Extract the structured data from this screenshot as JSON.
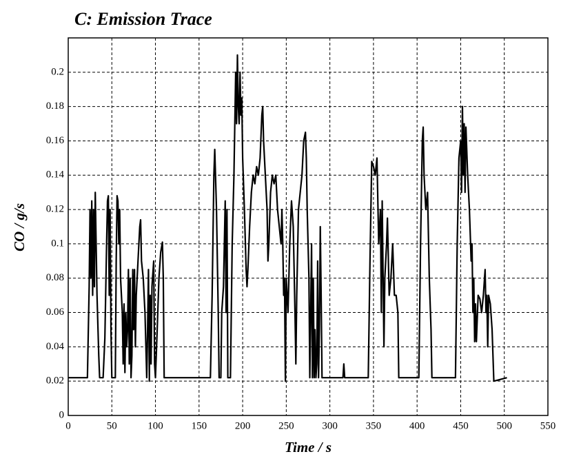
{
  "chart_data": {
    "type": "line",
    "title": "C:   Emission Trace",
    "x_label": "Time / s",
    "y_label": "CO / g/s",
    "grid": true,
    "xlim": [
      0,
      550
    ],
    "ylim": [
      0,
      0.22
    ],
    "xticks": [
      0,
      50,
      100,
      150,
      200,
      250,
      300,
      350,
      400,
      450,
      500,
      550
    ],
    "yticks": [
      0,
      0.02,
      0.04,
      0.06,
      0.08,
      0.1,
      0.12,
      0.14,
      0.16,
      0.18,
      0.2
    ],
    "series": [
      {
        "name": "CO",
        "color": "#000000",
        "x": [
          0,
          22,
          24,
          25,
          26,
          27,
          28,
          29,
          30,
          31,
          32,
          33,
          35,
          36,
          40,
          42,
          44,
          45,
          46,
          47,
          48,
          49,
          50,
          54,
          55,
          56,
          57,
          58,
          59,
          60,
          62,
          63,
          64,
          65,
          66,
          67,
          68,
          69,
          70,
          71,
          72,
          73,
          74,
          75,
          76,
          77,
          78,
          80,
          82,
          83,
          84,
          86,
          88,
          90,
          91,
          92,
          93,
          94,
          95,
          96,
          98,
          99,
          100,
          102,
          104,
          106,
          108,
          109,
          110,
          112,
          163,
          165,
          167,
          168,
          170,
          172,
          173,
          175,
          176,
          178,
          180,
          181,
          182,
          183,
          186,
          188,
          190,
          192,
          193,
          194,
          195,
          196,
          197,
          198,
          199,
          200,
          202,
          204,
          205,
          206,
          208,
          210,
          212,
          214,
          216,
          218,
          220,
          222,
          223,
          224,
          226,
          228,
          229,
          230,
          232,
          234,
          236,
          238,
          240,
          242,
          244,
          245,
          246,
          247,
          248,
          249,
          250,
          252,
          254,
          256,
          258,
          260,
          261,
          262,
          264,
          266,
          268,
          270,
          272,
          273,
          274,
          276,
          277,
          278,
          279,
          280,
          281,
          282,
          283,
          284,
          285,
          286,
          287,
          288,
          289,
          290,
          291,
          293,
          315,
          316,
          317,
          344,
          346,
          348,
          350,
          352,
          354,
          356,
          358,
          359,
          360,
          362,
          363,
          365,
          366,
          368,
          370,
          372,
          374,
          376,
          378,
          379,
          402,
          404,
          406,
          407,
          408,
          410,
          412,
          414,
          416,
          417,
          444,
          446,
          448,
          450,
          451,
          452,
          453,
          454,
          455,
          456,
          458,
          460,
          462,
          463,
          464,
          465,
          466,
          467,
          468,
          470,
          472,
          474,
          476,
          478,
          479,
          480,
          481,
          482,
          484,
          486,
          488,
          503
        ],
        "values": [
          0.022,
          0.022,
          0.075,
          0.12,
          0.08,
          0.125,
          0.07,
          0.12,
          0.075,
          0.13,
          0.1,
          0.07,
          0.035,
          0.022,
          0.022,
          0.045,
          0.1,
          0.125,
          0.128,
          0.07,
          0.12,
          0.05,
          0.022,
          0.022,
          0.09,
          0.128,
          0.125,
          0.1,
          0.12,
          0.08,
          0.06,
          0.03,
          0.065,
          0.025,
          0.06,
          0.04,
          0.05,
          0.085,
          0.03,
          0.08,
          0.022,
          0.035,
          0.085,
          0.05,
          0.085,
          0.04,
          0.07,
          0.09,
          0.11,
          0.114,
          0.09,
          0.08,
          0.06,
          0.022,
          0.05,
          0.085,
          0.02,
          0.07,
          0.03,
          0.075,
          0.09,
          0.03,
          0.022,
          0.05,
          0.08,
          0.095,
          0.101,
          0.08,
          0.022,
          0.022,
          0.022,
          0.07,
          0.14,
          0.155,
          0.12,
          0.06,
          0.022,
          0.022,
          0.06,
          0.075,
          0.125,
          0.06,
          0.12,
          0.022,
          0.022,
          0.1,
          0.14,
          0.2,
          0.17,
          0.21,
          0.18,
          0.17,
          0.2,
          0.175,
          0.185,
          0.15,
          0.12,
          0.085,
          0.075,
          0.085,
          0.11,
          0.13,
          0.14,
          0.135,
          0.145,
          0.14,
          0.15,
          0.175,
          0.18,
          0.16,
          0.14,
          0.12,
          0.09,
          0.1,
          0.13,
          0.14,
          0.135,
          0.14,
          0.12,
          0.11,
          0.1,
          0.12,
          0.1,
          0.07,
          0.08,
          0.02,
          0.08,
          0.06,
          0.1,
          0.125,
          0.11,
          0.06,
          0.03,
          0.07,
          0.12,
          0.13,
          0.14,
          0.16,
          0.165,
          0.15,
          0.12,
          0.08,
          0.022,
          0.06,
          0.1,
          0.022,
          0.08,
          0.022,
          0.05,
          0.022,
          0.03,
          0.09,
          0.022,
          0.05,
          0.11,
          0.07,
          0.022,
          0.022,
          0.022,
          0.03,
          0.022,
          0.022,
          0.09,
          0.148,
          0.145,
          0.14,
          0.15,
          0.1,
          0.12,
          0.06,
          0.125,
          0.04,
          0.08,
          0.1,
          0.115,
          0.07,
          0.08,
          0.1,
          0.07,
          0.07,
          0.06,
          0.022,
          0.022,
          0.1,
          0.16,
          0.168,
          0.14,
          0.12,
          0.13,
          0.08,
          0.05,
          0.022,
          0.022,
          0.1,
          0.15,
          0.16,
          0.13,
          0.18,
          0.14,
          0.17,
          0.13,
          0.168,
          0.14,
          0.12,
          0.09,
          0.1,
          0.06,
          0.08,
          0.043,
          0.065,
          0.043,
          0.07,
          0.068,
          0.06,
          0.07,
          0.085,
          0.06,
          0.07,
          0.04,
          0.07,
          0.065,
          0.05,
          0.02,
          0.022
        ]
      }
    ]
  }
}
